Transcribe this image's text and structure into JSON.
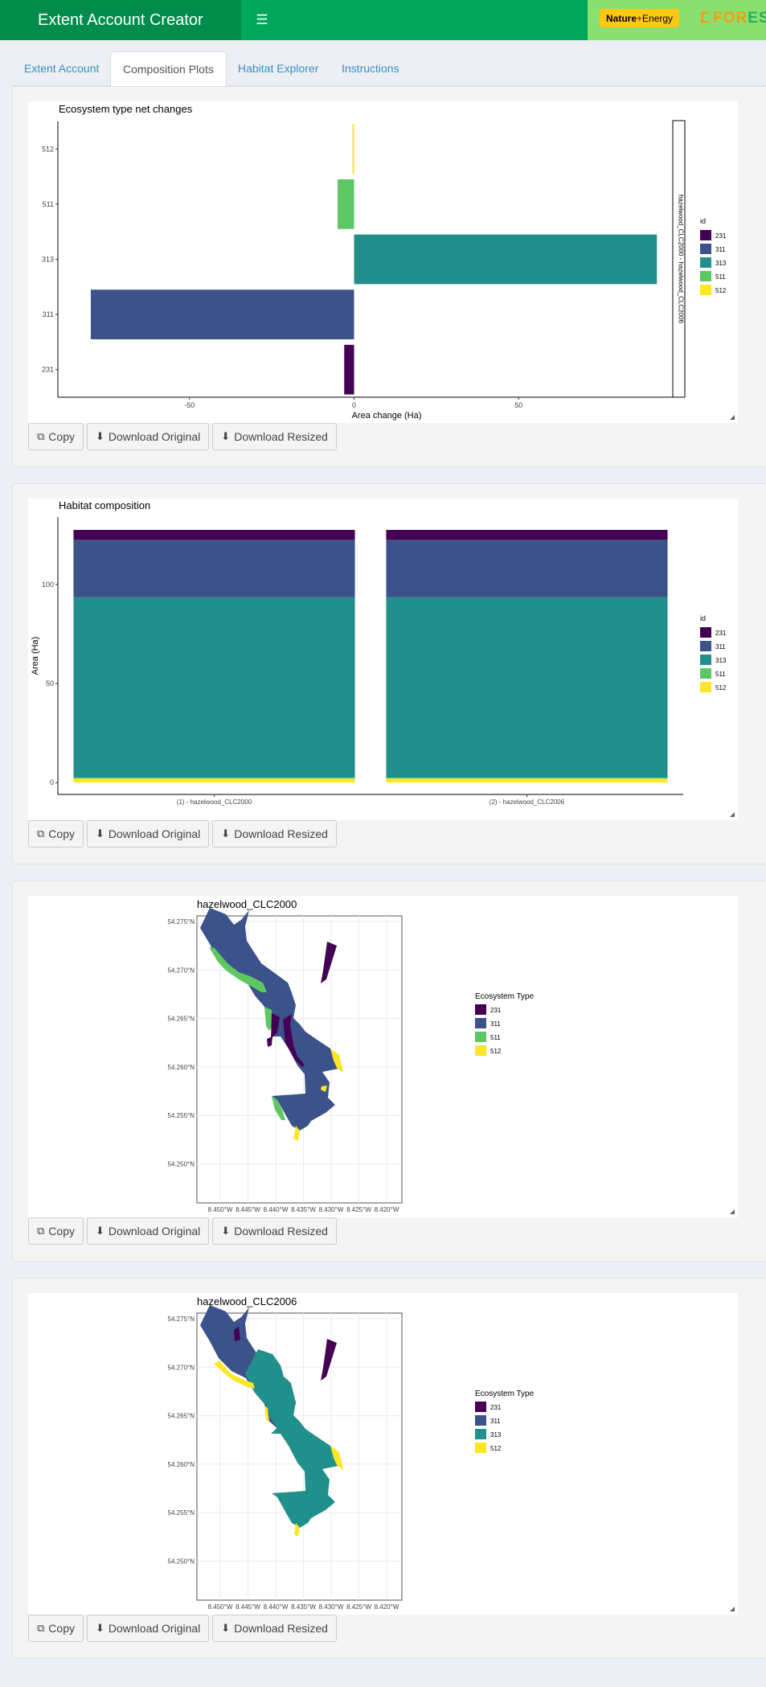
{
  "app": {
    "title": "Extent Account Creator"
  },
  "header": {
    "toggle_icon": "hamburger-menu-icon",
    "logo_nature_energy": {
      "part1": "Nature",
      "plus": "+",
      "part2": "Energy"
    },
    "logo_forest": {
      "text1": "FOR",
      "text2": "ES"
    }
  },
  "tabs": [
    {
      "label": "Extent Account",
      "active": false
    },
    {
      "label": "Composition Plots",
      "active": true
    },
    {
      "label": "Habitat Explorer",
      "active": false
    },
    {
      "label": "Instructions",
      "active": false
    }
  ],
  "buttons": {
    "copy": "Copy",
    "download_original": "Download Original",
    "download_resized": "Download Resized"
  },
  "colors": {
    "231": "#440154",
    "311": "#3b528b",
    "313": "#21908c",
    "511": "#5dc863",
    "512": "#fde725"
  },
  "plots": [
    {
      "chart_data": {
        "type": "bar",
        "orientation": "horizontal",
        "title": "Ecosystem type net changes",
        "xlabel": "Area change (Ha)",
        "ylabel": "",
        "facet_label": "hazelwood_CLC2000 - hazelwood_CLC2006",
        "categories": [
          "231",
          "311",
          "313",
          "511",
          "512"
        ],
        "values": [
          -3,
          -80,
          92,
          -5,
          -0.5
        ],
        "xlim": [
          -90,
          100
        ],
        "xticks": [
          -50,
          0,
          50
        ],
        "legend": {
          "title": "id",
          "position": "right",
          "entries": [
            "231",
            "311",
            "313",
            "511",
            "512"
          ]
        }
      }
    },
    {
      "chart_data": {
        "type": "bar",
        "stacked": true,
        "title": "Habitat composition",
        "xlabel": "",
        "ylabel": "Area (Ha)",
        "categories": [
          "(1) - hazelwood_CLC2000",
          "(2) - hazelwood_CLC2006"
        ],
        "series": [
          {
            "name": "512",
            "values": [
              2,
              2
            ]
          },
          {
            "name": "511",
            "values": [
              0.5,
              0.5
            ]
          },
          {
            "name": "313",
            "values": [
              91,
              91
            ]
          },
          {
            "name": "311",
            "values": [
              29,
              29
            ]
          },
          {
            "name": "231",
            "values": [
              5,
              5
            ]
          }
        ],
        "ylim": [
          -6,
          134
        ],
        "yticks": [
          0,
          50,
          100
        ],
        "legend": {
          "title": "id",
          "position": "right",
          "entries": [
            "231",
            "311",
            "313",
            "511",
            "512"
          ]
        }
      }
    },
    {
      "map": {
        "title": "hazelwood_CLC2000",
        "legend_title": "Ecosystem Type",
        "legend": [
          "231",
          "311",
          "511",
          "512"
        ],
        "y_ticks": [
          "54.275°N",
          "54.270°N",
          "54.265°N",
          "54.260°N",
          "54.255°N",
          "54.250°N"
        ],
        "x_ticks": [
          "8.450°W",
          "8.445°W",
          "8.440°W",
          "8.435°W",
          "8.430°W",
          "8.425°W",
          "8.420°W"
        ]
      }
    },
    {
      "map": {
        "title": "hazelwood_CLC2006",
        "legend_title": "Ecosystem Type",
        "legend": [
          "231",
          "311",
          "313",
          "512"
        ],
        "y_ticks": [
          "54.275°N",
          "54.270°N",
          "54.265°N",
          "54.260°N",
          "54.255°N",
          "54.250°N"
        ],
        "x_ticks": [
          "8.450°W",
          "8.445°W",
          "8.440°W",
          "8.435°W",
          "8.430°W",
          "8.425°W",
          "8.420°W"
        ]
      }
    }
  ]
}
